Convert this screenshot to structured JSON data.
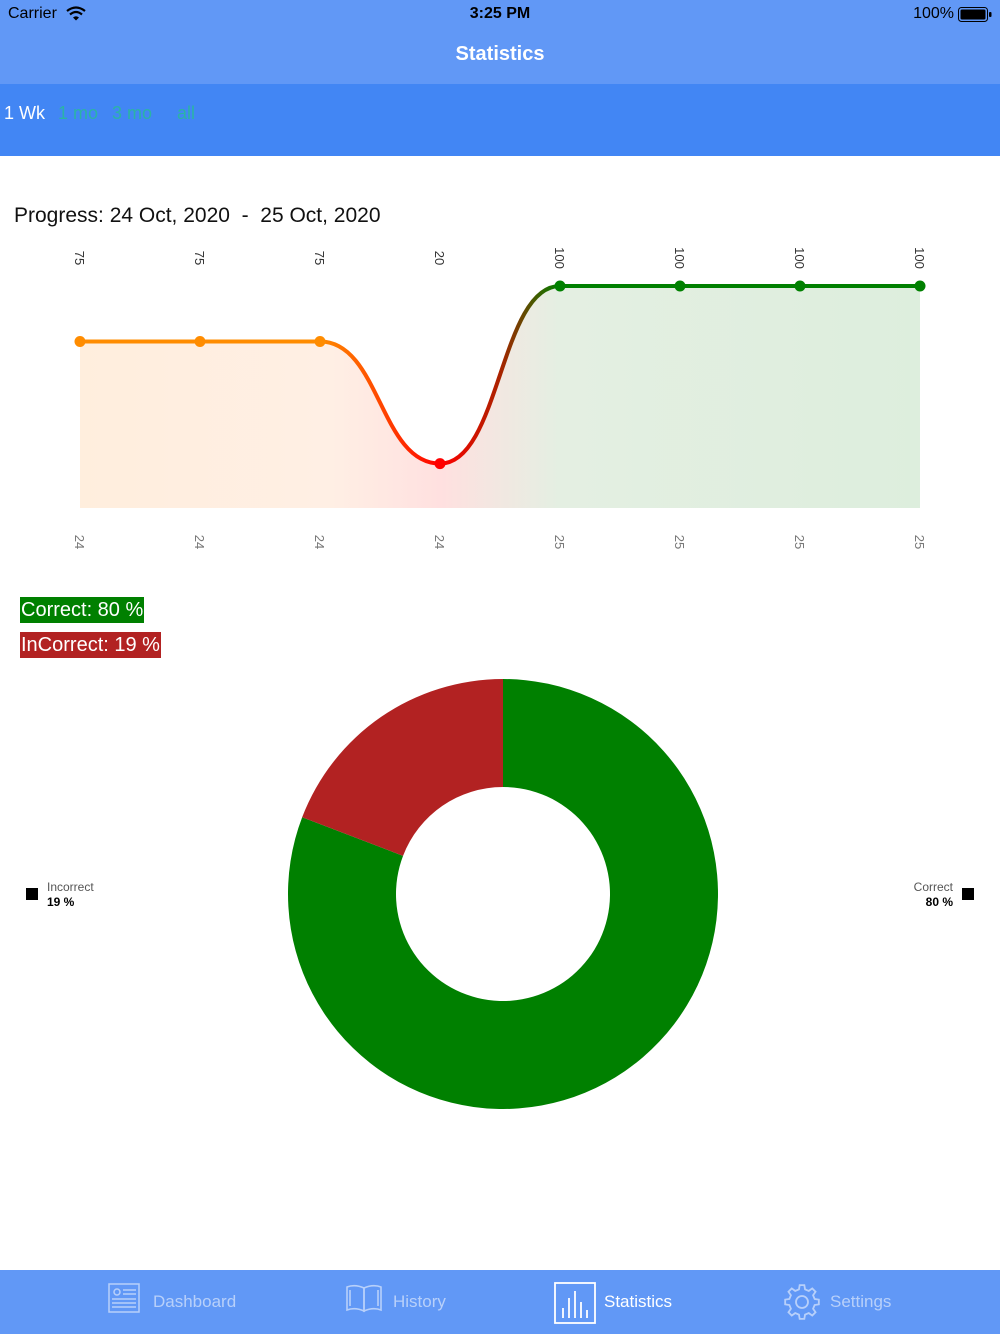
{
  "status_bar": {
    "carrier": "Carrier",
    "time": "3:25 PM",
    "battery": "100%"
  },
  "nav": {
    "title": "Statistics"
  },
  "segments": [
    {
      "label": "1 Wk",
      "active": true
    },
    {
      "label": "1 mo",
      "active": false
    },
    {
      "label": "3 mo",
      "active": false
    },
    {
      "label": "all",
      "active": false
    }
  ],
  "progress_title": "Progress: 24 Oct, 2020  -  25 Oct, 2020",
  "chart_data": [
    {
      "type": "area",
      "categories": [
        "24",
        "24",
        "24",
        "24",
        "25",
        "25",
        "25",
        "25"
      ],
      "values": [
        75,
        75,
        75,
        20,
        100,
        100,
        100,
        100
      ],
      "value_labels": [
        "75",
        "75",
        "75",
        "20",
        "100",
        "100",
        "100",
        "100"
      ],
      "ylim": [
        0,
        100
      ],
      "grid": false,
      "colors": {
        "mid": "#ff8c00",
        "low": "#ff0000",
        "high": "#008000"
      }
    },
    {
      "type": "pie",
      "labels": [
        "Correct",
        "Incorrect"
      ],
      "values": [
        80,
        19
      ],
      "value_labels": [
        "80 %",
        "19 %"
      ],
      "colors": [
        "#008000",
        "#b22222"
      ]
    }
  ],
  "summary": {
    "correct": "Correct: 80 %",
    "incorrect": "InCorrect: 19 %"
  },
  "tabs": [
    {
      "label": "Dashboard",
      "icon": "dashboard-icon",
      "active": false
    },
    {
      "label": "History",
      "icon": "book-icon",
      "active": false
    },
    {
      "label": "Statistics",
      "icon": "bar-chart-icon",
      "active": true
    },
    {
      "label": "Settings",
      "icon": "gear-icon",
      "active": false
    }
  ],
  "colors": {
    "nav": "#6198f6",
    "segment_bar": "#4286f4",
    "segment_inactive": "#2bb3a6",
    "tab_inactive": "#b8d0fa"
  }
}
